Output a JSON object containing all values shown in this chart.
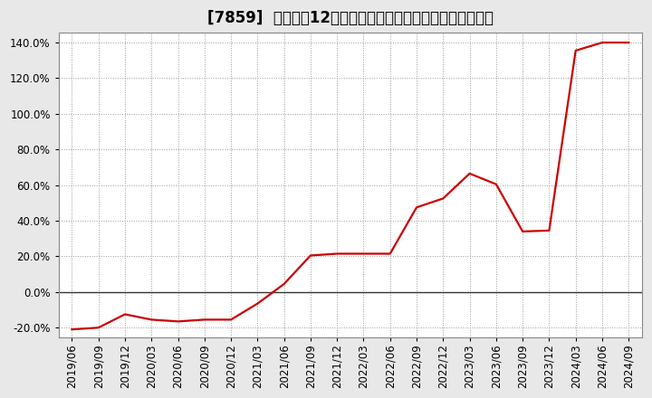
{
  "title": "[7859]  売上高の12か月移動合計の対前年同期増減率の推移",
  "dates": [
    "2019/06",
    "2019/09",
    "2019/12",
    "2020/03",
    "2020/06",
    "2020/09",
    "2020/12",
    "2021/03",
    "2021/06",
    "2021/09",
    "2021/12",
    "2022/03",
    "2022/06",
    "2022/09",
    "2022/12",
    "2023/03",
    "2023/06",
    "2023/09",
    "2023/12",
    "2024/03",
    "2024/06",
    "2024/09"
  ],
  "values": [
    -0.21,
    -0.2,
    -0.125,
    -0.155,
    -0.165,
    -0.155,
    -0.155,
    -0.065,
    0.045,
    0.205,
    0.215,
    0.215,
    0.215,
    0.475,
    0.525,
    0.665,
    0.605,
    0.34,
    0.345,
    1.355,
    1.4,
    1.4
  ],
  "line_color": "#cc0000",
  "bg_color": "#e8e8e8",
  "plot_bg_color": "#ffffff",
  "grid_color": "#999999",
  "title_color": "#000000",
  "zero_line_color": "#333333",
  "yticks": [
    -0.2,
    0.0,
    0.2,
    0.4,
    0.6,
    0.8,
    1.0,
    1.2,
    1.4
  ],
  "ymin": -0.255,
  "ymax": 1.455,
  "title_fontsize": 12,
  "tick_fontsize": 8.5
}
